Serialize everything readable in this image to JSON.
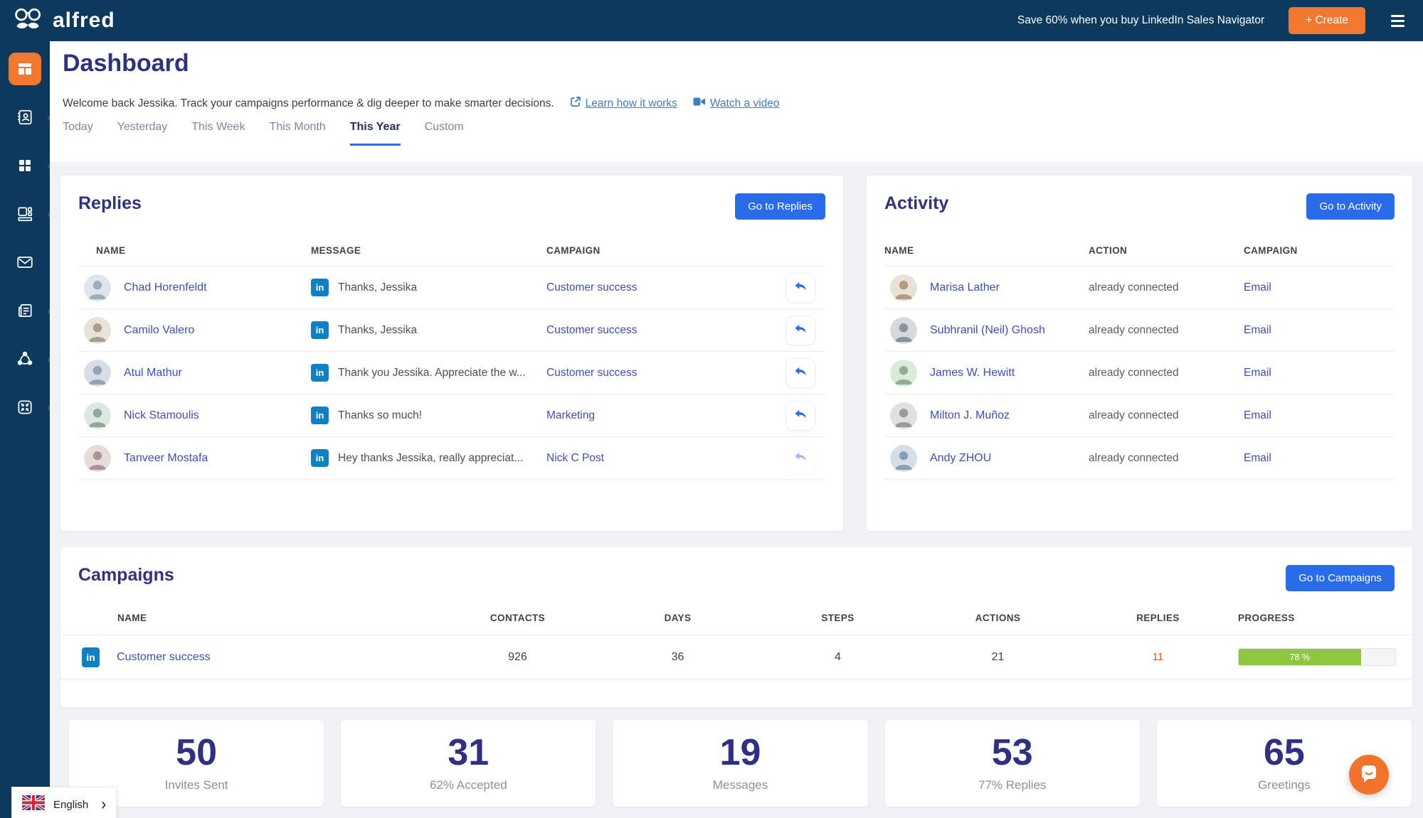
{
  "header": {
    "brand": "alfred",
    "promo": "Save 60% when you buy LinkedIn Sales Navigator",
    "create_label": "+ Create"
  },
  "sidebar": {
    "chevron": "›",
    "items": [
      {
        "icon": "dashboard-icon",
        "active": true
      },
      {
        "icon": "contacts-icon"
      },
      {
        "icon": "campaigns-icon"
      },
      {
        "icon": "templates-icon"
      },
      {
        "icon": "inbox-icon"
      },
      {
        "icon": "reports-icon"
      },
      {
        "icon": "network-icon"
      },
      {
        "icon": "integrations-icon"
      }
    ]
  },
  "page": {
    "title": "Dashboard",
    "welcome": "Welcome back Jessika. Track your campaigns performance & dig deeper to make smarter decisions.",
    "link_learn": "Learn how it works",
    "link_video": "Watch a video"
  },
  "tabs": {
    "items": [
      "Today",
      "Yesterday",
      "This Week",
      "This Month",
      "This Year",
      "Custom"
    ],
    "active": "This Year"
  },
  "linkedin_badge": "in",
  "replies": {
    "title": "Replies",
    "button": "Go to Replies",
    "columns": {
      "name": "NAME",
      "message": "MESSAGE",
      "campaign": "CAMPAIGN"
    },
    "rows": [
      {
        "name": "Chad Horenfeldt",
        "message": "Thanks, Jessika",
        "campaign": "Customer success"
      },
      {
        "name": "Camilo Valero",
        "message": "Thanks, Jessika",
        "campaign": "Customer success"
      },
      {
        "name": "Atul Mathur",
        "message": "Thank you Jessika. Appreciate the w...",
        "campaign": "Customer success"
      },
      {
        "name": "Nick Stamoulis",
        "message": "Thanks so much!",
        "campaign": "Marketing"
      },
      {
        "name": "Tanveer Mostafa",
        "message": "Hey thanks Jessika, really appreciat...",
        "campaign": "Nick C Post"
      }
    ]
  },
  "activity": {
    "title": "Activity",
    "button": "Go to Activity",
    "columns": {
      "name": "NAME",
      "action": "ACTION",
      "campaign": "CAMPAIGN"
    },
    "rows": [
      {
        "name": "Marisa Lather",
        "action": "already connected",
        "campaign": "Email"
      },
      {
        "name": "Subhranil (Neil) Ghosh",
        "action": "already connected",
        "campaign": "Email"
      },
      {
        "name": "James W. Hewitt",
        "action": "already connected",
        "campaign": "Email"
      },
      {
        "name": "Milton J. Muñoz",
        "action": "already connected",
        "campaign": "Email"
      },
      {
        "name": "Andy ZHOU",
        "action": "already connected",
        "campaign": "Email"
      }
    ]
  },
  "campaigns": {
    "title": "Campaigns",
    "button": "Go to Campaigns",
    "columns": {
      "name": "NAME",
      "contacts": "CONTACTS",
      "days": "DAYS",
      "steps": "STEPS",
      "actions": "ACTIONS",
      "replies": "REPLIES",
      "progress": "PROGRESS"
    },
    "rows": [
      {
        "name": "Customer success",
        "contacts": "926",
        "days": "36",
        "steps": "4",
        "actions": "21",
        "replies": "11",
        "progress_label": "78 %",
        "progress_pct": 78
      }
    ]
  },
  "stats": {
    "items": [
      {
        "value": "50",
        "label": "Invites Sent"
      },
      {
        "value": "31",
        "label": "62% Accepted"
      },
      {
        "value": "19",
        "label": "Messages"
      },
      {
        "value": "53",
        "label": "77% Replies"
      },
      {
        "value": "65",
        "label": "Greetings"
      }
    ]
  },
  "language": {
    "label": "English",
    "chevron": "›"
  },
  "colors": {
    "navy": "#0d3a5c",
    "orange": "#f2782f",
    "blue": "#2a6be8",
    "indigo": "#32327c",
    "green": "#8dc63f",
    "replies_red": "#e2532e"
  }
}
